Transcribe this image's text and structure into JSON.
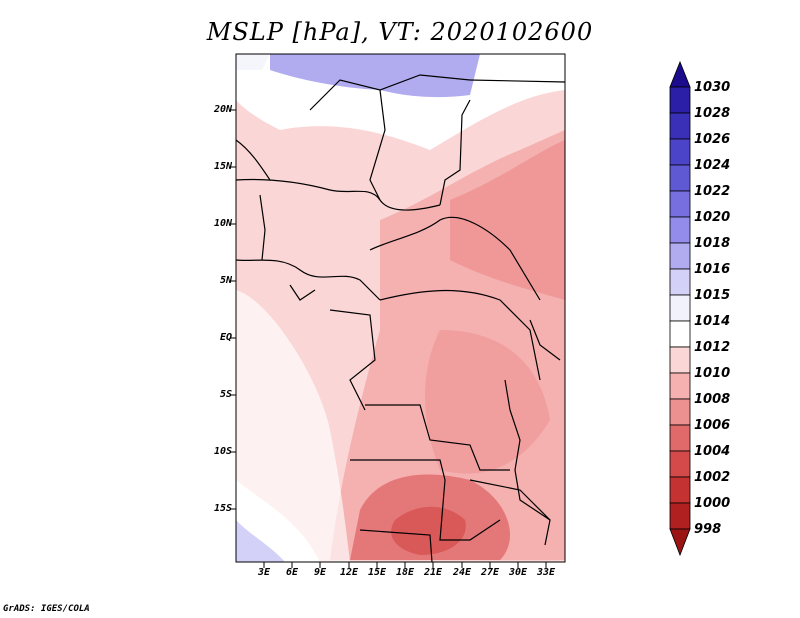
{
  "title": "MSLP [hPa], VT: 2020102600",
  "credit": "GrADS: IGES/COLA",
  "latitude_labels": [
    "20N",
    "15N",
    "10N",
    "5N",
    "EQ",
    "5S",
    "10S",
    "15S"
  ],
  "longitude_labels": [
    "3E",
    "6E",
    "9E",
    "12E",
    "15E",
    "18E",
    "21E",
    "24E",
    "27E",
    "30E",
    "33E"
  ],
  "colorbar": {
    "levels": [
      "1030",
      "1028",
      "1026",
      "1024",
      "1022",
      "1020",
      "1018",
      "1016",
      "1015",
      "1014",
      "1012",
      "1010",
      "1008",
      "1006",
      "1004",
      "1002",
      "1000",
      "998"
    ],
    "colors": [
      "#1a0c8c",
      "#2a1fa6",
      "#3a30b8",
      "#4b44c8",
      "#6059d4",
      "#776fe0",
      "#938cea",
      "#b1acf0",
      "#d3d1f7",
      "#f2f2fc",
      "#ffffff",
      "#fbd6d6",
      "#f5b0b0",
      "#ed9090",
      "#e06a6a",
      "#d44a4a",
      "#c43232",
      "#b02020",
      "#9a1414"
    ]
  }
}
